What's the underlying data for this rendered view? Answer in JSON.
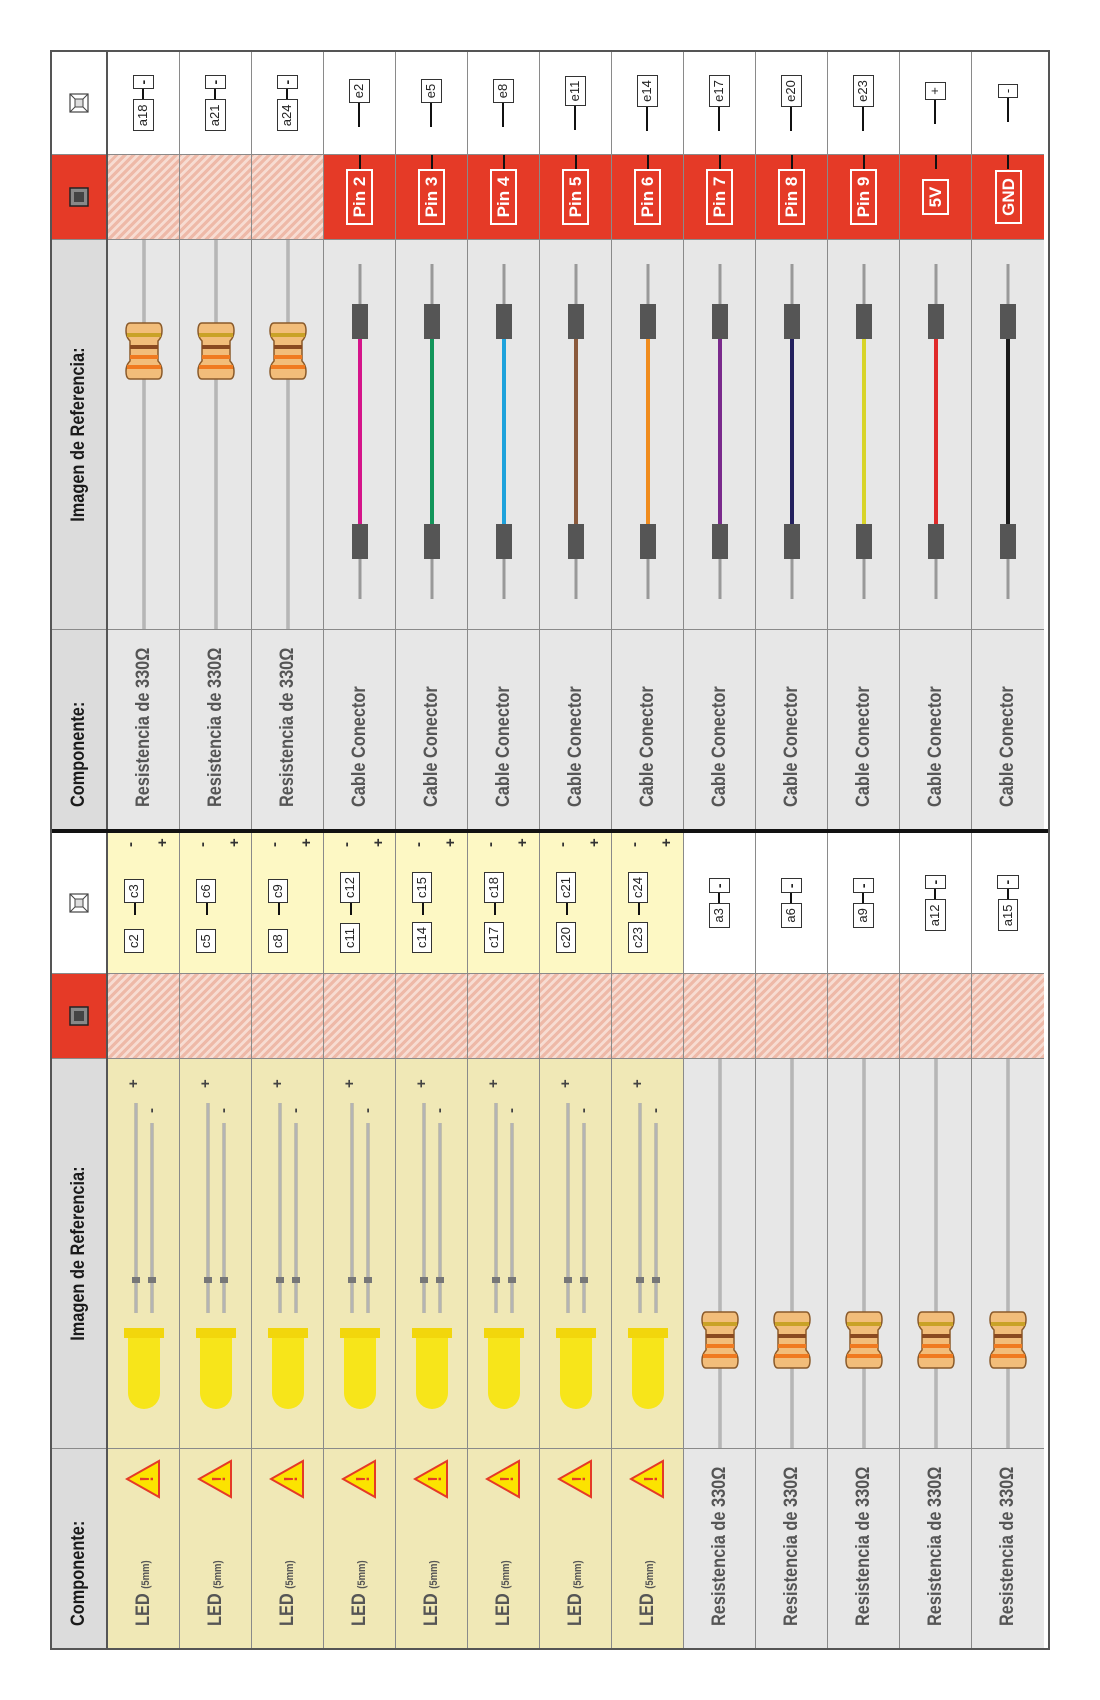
{
  "headers": {
    "component": "Componente:",
    "reference_image": "Imagen de Referencia:"
  },
  "icons": {
    "pin_header": "arduino-chip-icon",
    "board_header": "breadboard-chip-icon",
    "warning": "warning-triangle-icon"
  },
  "colors": {
    "pin_red": "#e53a27",
    "led_background": "#f0e8b6",
    "grey_background": "#e7e7e7",
    "led_yellow": "#f7e51a"
  },
  "left_rows": [
    {
      "kind": "led",
      "component": "LED",
      "size": "(5mm)",
      "warning": true,
      "board": {
        "pos": "c2",
        "neg": "c3",
        "plus": "+",
        "minus": "-"
      }
    },
    {
      "kind": "led",
      "component": "LED",
      "size": "(5mm)",
      "warning": true,
      "board": {
        "pos": "c5",
        "neg": "c6",
        "plus": "+",
        "minus": "-"
      }
    },
    {
      "kind": "led",
      "component": "LED",
      "size": "(5mm)",
      "warning": true,
      "board": {
        "pos": "c8",
        "neg": "c9",
        "plus": "+",
        "minus": "-"
      }
    },
    {
      "kind": "led",
      "component": "LED",
      "size": "(5mm)",
      "warning": true,
      "board": {
        "pos": "c11",
        "neg": "c12",
        "plus": "+",
        "minus": "-"
      }
    },
    {
      "kind": "led",
      "component": "LED",
      "size": "(5mm)",
      "warning": true,
      "board": {
        "pos": "c14",
        "neg": "c15",
        "plus": "+",
        "minus": "-"
      }
    },
    {
      "kind": "led",
      "component": "LED",
      "size": "(5mm)",
      "warning": true,
      "board": {
        "pos": "c17",
        "neg": "c18",
        "plus": "+",
        "minus": "-"
      }
    },
    {
      "kind": "led",
      "component": "LED",
      "size": "(5mm)",
      "warning": true,
      "board": {
        "pos": "c20",
        "neg": "c21",
        "plus": "+",
        "minus": "-"
      }
    },
    {
      "kind": "led",
      "component": "LED",
      "size": "(5mm)",
      "warning": true,
      "board": {
        "pos": "c23",
        "neg": "c24",
        "plus": "+",
        "minus": "-"
      }
    },
    {
      "kind": "resistor",
      "component": "Resistencia de 330Ω",
      "board": {
        "pos": "a3",
        "symbol": "-"
      }
    },
    {
      "kind": "resistor",
      "component": "Resistencia de 330Ω",
      "board": {
        "pos": "a6",
        "symbol": "-"
      }
    },
    {
      "kind": "resistor",
      "component": "Resistencia de 330Ω",
      "board": {
        "pos": "a9",
        "symbol": "-"
      }
    },
    {
      "kind": "resistor",
      "component": "Resistencia de 330Ω",
      "board": {
        "pos": "a12",
        "symbol": "-"
      }
    },
    {
      "kind": "resistor",
      "component": "Resistencia de 330Ω",
      "board": {
        "pos": "a15",
        "symbol": "-"
      }
    }
  ],
  "right_rows": [
    {
      "kind": "resistor",
      "component": "Resistencia de 330Ω",
      "board": {
        "pos": "a18",
        "symbol": "-"
      }
    },
    {
      "kind": "resistor",
      "component": "Resistencia de 330Ω",
      "board": {
        "pos": "a21",
        "symbol": "-"
      }
    },
    {
      "kind": "resistor",
      "component": "Resistencia de 330Ω",
      "board": {
        "pos": "a24",
        "symbol": "-"
      }
    },
    {
      "kind": "wire",
      "component": "Cable Conector",
      "wire_color": "#d5148a",
      "pin": "Pin 2",
      "board": {
        "pos": "e2"
      }
    },
    {
      "kind": "wire",
      "component": "Cable Conector",
      "wire_color": "#12955a",
      "pin": "Pin 3",
      "board": {
        "pos": "e5"
      }
    },
    {
      "kind": "wire",
      "component": "Cable Conector",
      "wire_color": "#1ea2dc",
      "pin": "Pin 4",
      "board": {
        "pos": "e8"
      }
    },
    {
      "kind": "wire",
      "component": "Cable Conector",
      "wire_color": "#8b5a3c",
      "pin": "Pin 5",
      "board": {
        "pos": "e11"
      }
    },
    {
      "kind": "wire",
      "component": "Cable Conector",
      "wire_color": "#f08c1e",
      "pin": "Pin 6",
      "board": {
        "pos": "e14"
      }
    },
    {
      "kind": "wire",
      "component": "Cable Conector",
      "wire_color": "#7a2a8c",
      "pin": "Pin 7",
      "board": {
        "pos": "e17"
      }
    },
    {
      "kind": "wire",
      "component": "Cable Conector",
      "wire_color": "#23205e",
      "pin": "Pin 8",
      "board": {
        "pos": "e20"
      }
    },
    {
      "kind": "wire",
      "component": "Cable Conector",
      "wire_color": "#d8d428",
      "pin": "Pin 9",
      "board": {
        "pos": "e23"
      }
    },
    {
      "kind": "wire",
      "component": "Cable Conector",
      "wire_color": "#e02a2a",
      "pin": "5V",
      "board": {
        "pos": "+"
      }
    },
    {
      "kind": "wire",
      "component": "Cable Conector",
      "wire_color": "#1a1a1a",
      "pin": "GND",
      "board": {
        "pos": "-"
      }
    }
  ]
}
